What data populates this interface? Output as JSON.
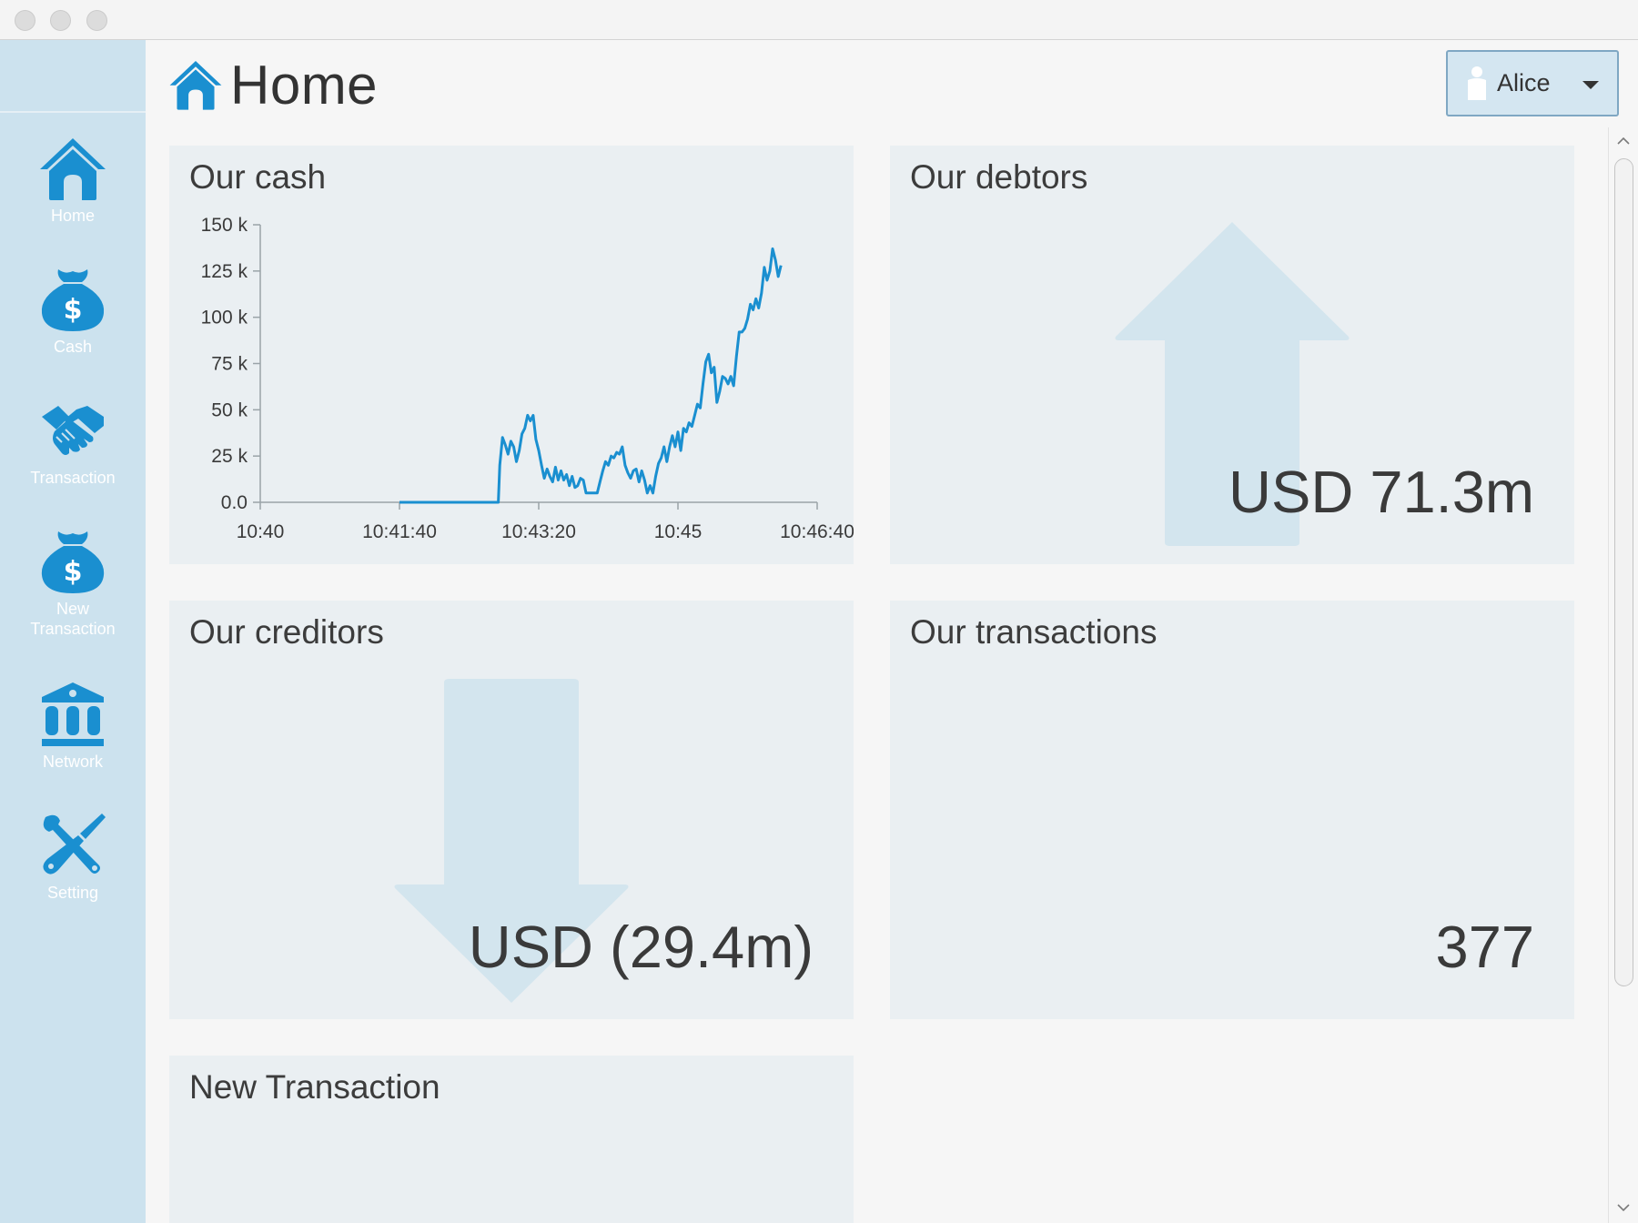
{
  "window": {
    "title": ""
  },
  "sidebar": {
    "items": [
      {
        "label": "Home",
        "icon": "home-icon"
      },
      {
        "label": "Cash",
        "icon": "money-bag-icon"
      },
      {
        "label": "Transaction",
        "icon": "handshake-icon"
      },
      {
        "label_line1": "New",
        "label_line2": "Transaction",
        "icon": "money-bag-icon"
      },
      {
        "label": "Network",
        "icon": "bank-icon"
      },
      {
        "label": "Setting",
        "icon": "tools-icon"
      }
    ]
  },
  "header": {
    "title": "Home",
    "icon": "home-icon"
  },
  "user_selector": {
    "value": "Alice",
    "icon": "user-icon"
  },
  "cards": {
    "cash": {
      "title": "Our cash"
    },
    "debtors": {
      "title": "Our debtors",
      "value": "USD 71.3m",
      "icon": "arrow-up-icon"
    },
    "creditors": {
      "title": "Our creditors",
      "value": "USD (29.4m)",
      "icon": "arrow-down-icon"
    },
    "transactions": {
      "title": "Our transactions",
      "value": "377"
    },
    "new_transaction": {
      "title": "New Transaction"
    }
  },
  "colors": {
    "accent": "#1a8fd0",
    "sidebar_bg": "#cce2ee",
    "card_bg": "#eaeff2",
    "arrow_bg": "#d3e5ee"
  },
  "chart_data": {
    "type": "line",
    "title": "Our cash",
    "xlabel": "",
    "ylabel": "",
    "x_unit": "seconds",
    "xlim": [
      "10:40:00",
      "10:46:40"
    ],
    "ylim": [
      0,
      150000
    ],
    "x_ticks": [
      "10:40",
      "10:41:40",
      "10:43:20",
      "10:45",
      "10:46:40"
    ],
    "y_ticks": [
      "0.0",
      "25 k",
      "50 k",
      "75 k",
      "100 k",
      "125 k",
      "150 k"
    ],
    "grid": false,
    "legend": "none",
    "series": [
      {
        "color": "#1a8fd0",
        "points": [
          [
            "10:41:40",
            0
          ],
          [
            "10:41:50",
            0
          ],
          [
            "10:42:10",
            0
          ],
          [
            "10:42:30",
            0
          ],
          [
            "10:42:51",
            0
          ],
          [
            "10:42:52",
            20000
          ],
          [
            "10:42:54",
            35000
          ],
          [
            "10:42:56",
            31000
          ],
          [
            "10:42:58",
            26000
          ],
          [
            "10:43:00",
            33000
          ],
          [
            "10:43:02",
            30000
          ],
          [
            "10:43:04",
            22000
          ],
          [
            "10:43:06",
            28000
          ],
          [
            "10:43:08",
            37000
          ],
          [
            "10:43:10",
            40000
          ],
          [
            "10:43:12",
            47000
          ],
          [
            "10:43:14",
            44000
          ],
          [
            "10:43:16",
            47000
          ],
          [
            "10:43:18",
            34000
          ],
          [
            "10:43:20",
            28000
          ],
          [
            "10:43:22",
            20000
          ],
          [
            "10:43:24",
            13000
          ],
          [
            "10:43:26",
            18000
          ],
          [
            "10:43:28",
            14000
          ],
          [
            "10:43:30",
            11000
          ],
          [
            "10:43:32",
            19000
          ],
          [
            "10:43:34",
            12000
          ],
          [
            "10:43:36",
            17000
          ],
          [
            "10:43:38",
            12000
          ],
          [
            "10:43:40",
            15000
          ],
          [
            "10:43:42",
            9000
          ],
          [
            "10:43:44",
            14000
          ],
          [
            "10:43:46",
            8000
          ],
          [
            "10:43:48",
            9000
          ],
          [
            "10:43:50",
            13000
          ],
          [
            "10:43:52",
            12000
          ],
          [
            "10:43:54",
            5000
          ],
          [
            "10:43:58",
            5000
          ],
          [
            "10:44:02",
            5000
          ],
          [
            "10:44:04",
            11000
          ],
          [
            "10:44:06",
            17000
          ],
          [
            "10:44:08",
            22000
          ],
          [
            "10:44:10",
            20000
          ],
          [
            "10:44:12",
            25000
          ],
          [
            "10:44:14",
            24000
          ],
          [
            "10:44:16",
            27000
          ],
          [
            "10:44:18",
            26000
          ],
          [
            "10:44:20",
            30000
          ],
          [
            "10:44:22",
            20000
          ],
          [
            "10:44:24",
            16000
          ],
          [
            "10:44:26",
            13000
          ],
          [
            "10:44:28",
            17000
          ],
          [
            "10:44:30",
            18000
          ],
          [
            "10:44:32",
            11000
          ],
          [
            "10:44:34",
            17000
          ],
          [
            "10:44:36",
            12000
          ],
          [
            "10:44:38",
            5000
          ],
          [
            "10:44:40",
            9000
          ],
          [
            "10:44:42",
            5000
          ],
          [
            "10:44:44",
            14000
          ],
          [
            "10:44:46",
            21000
          ],
          [
            "10:44:48",
            24000
          ],
          [
            "10:44:50",
            30000
          ],
          [
            "10:44:52",
            22000
          ],
          [
            "10:44:54",
            30000
          ],
          [
            "10:44:56",
            36000
          ],
          [
            "10:44:58",
            30000
          ],
          [
            "10:45:00",
            38000
          ],
          [
            "10:45:02",
            28000
          ],
          [
            "10:45:04",
            40000
          ],
          [
            "10:45:06",
            38000
          ],
          [
            "10:45:08",
            43000
          ],
          [
            "10:45:10",
            41000
          ],
          [
            "10:45:12",
            47000
          ],
          [
            "10:45:14",
            53000
          ],
          [
            "10:45:16",
            51000
          ],
          [
            "10:45:18",
            64000
          ],
          [
            "10:45:20",
            76000
          ],
          [
            "10:45:22",
            80000
          ],
          [
            "10:45:24",
            70000
          ],
          [
            "10:45:26",
            73000
          ],
          [
            "10:45:28",
            54000
          ],
          [
            "10:45:30",
            60000
          ],
          [
            "10:45:32",
            68000
          ],
          [
            "10:45:34",
            67000
          ],
          [
            "10:45:36",
            64000
          ],
          [
            "10:45:38",
            68000
          ],
          [
            "10:45:40",
            63000
          ],
          [
            "10:45:42",
            79000
          ],
          [
            "10:45:44",
            92000
          ],
          [
            "10:45:46",
            92000
          ],
          [
            "10:45:48",
            94000
          ],
          [
            "10:45:50",
            99000
          ],
          [
            "10:45:52",
            107000
          ],
          [
            "10:45:54",
            104000
          ],
          [
            "10:45:56",
            110000
          ],
          [
            "10:45:58",
            105000
          ],
          [
            "10:46:00",
            113000
          ],
          [
            "10:46:02",
            127000
          ],
          [
            "10:46:04",
            120000
          ],
          [
            "10:46:06",
            125000
          ],
          [
            "10:46:08",
            137000
          ],
          [
            "10:46:10",
            131000
          ],
          [
            "10:46:12",
            122000
          ],
          [
            "10:46:14",
            128000
          ]
        ]
      }
    ]
  }
}
